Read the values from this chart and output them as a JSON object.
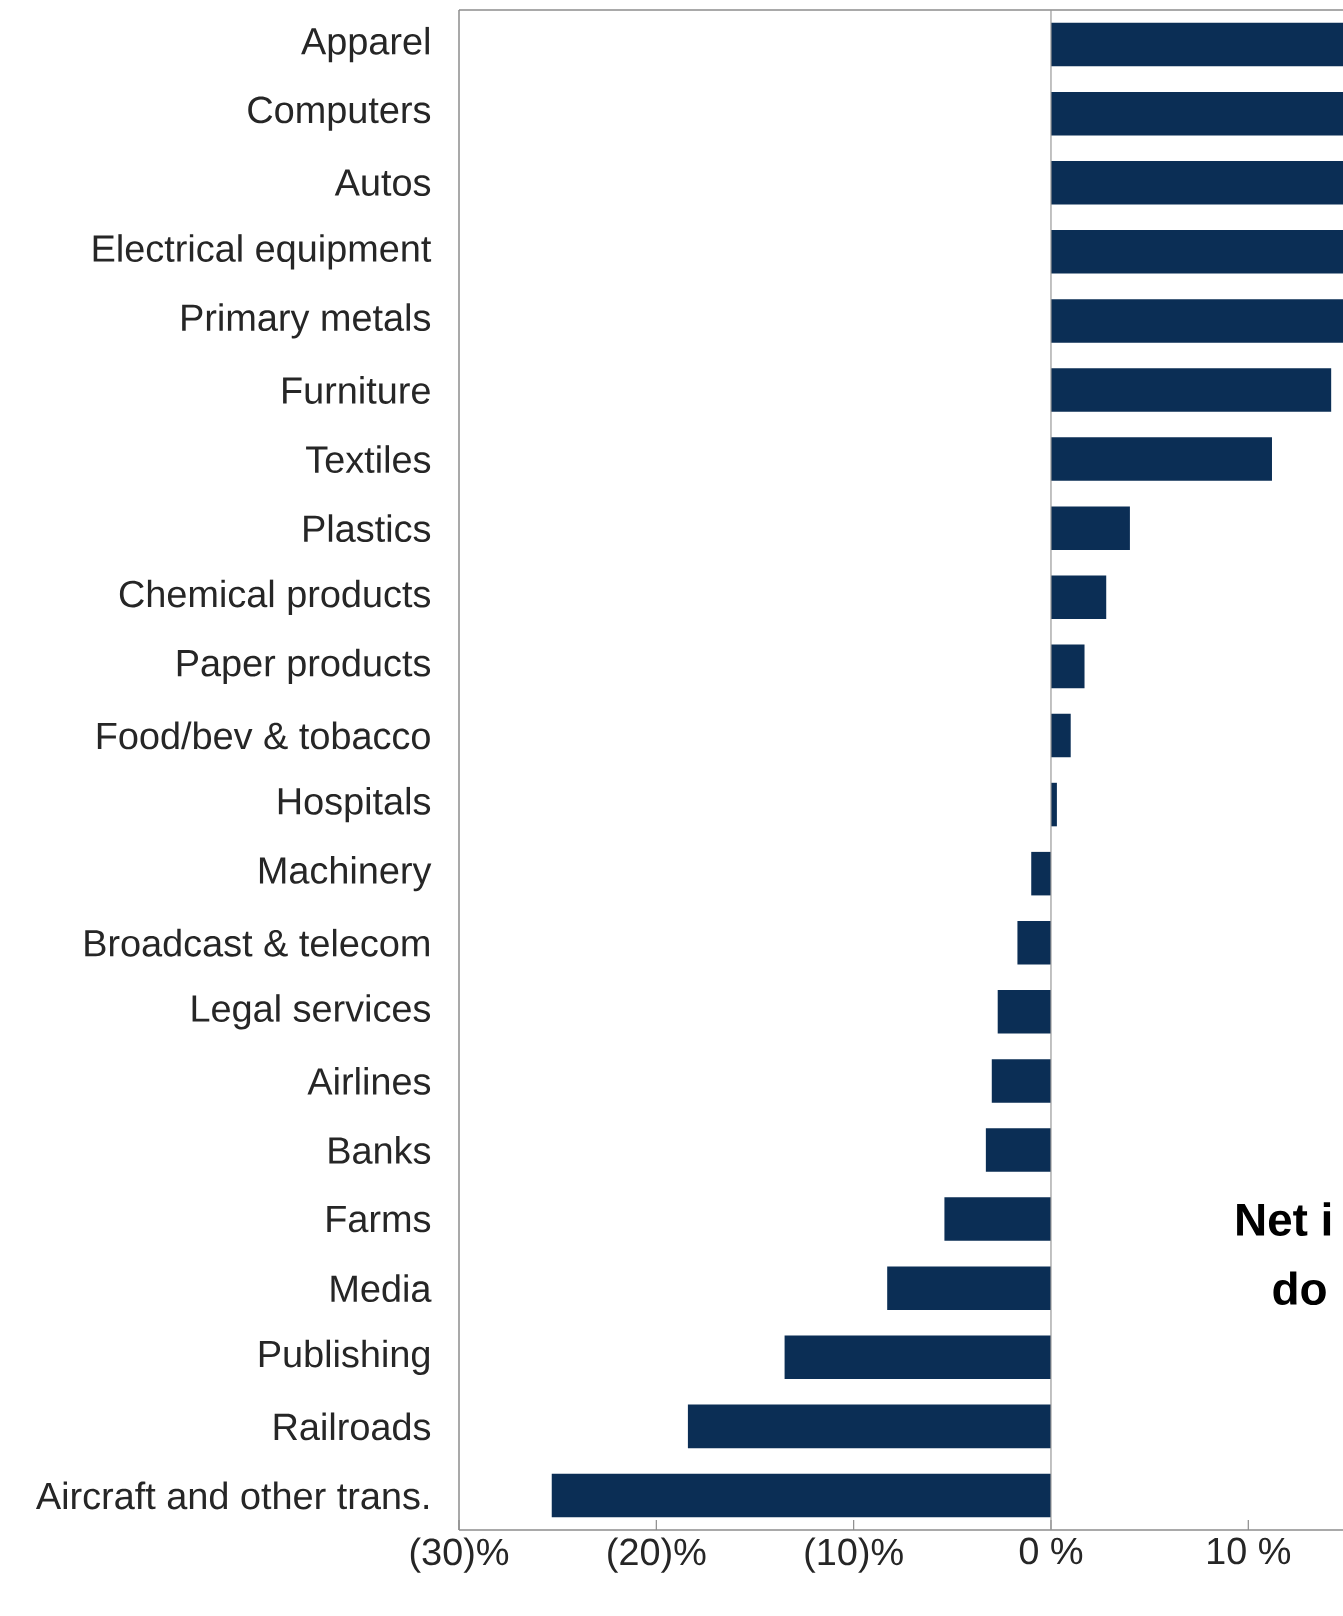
{
  "chart_data": {
    "type": "bar",
    "orientation": "horizontal",
    "color": "#0b2e55",
    "categories": [
      "Apparel",
      "Computers",
      "Autos",
      "Electrical equipment",
      "Primary metals",
      "Furniture",
      "Textiles",
      "Plastics",
      "Chemical products",
      "Paper products",
      "Food/bev & tobacco",
      "Hospitals",
      "Machinery",
      "Broadcast & telecom",
      "Legal services",
      "Airlines",
      "Banks",
      "Farms",
      "Media",
      "Publishing",
      "Railroads",
      "Aircraft and other trans."
    ],
    "values": [
      14.8,
      14.8,
      14.8,
      14.8,
      14.8,
      14.2,
      11.2,
      4.0,
      2.8,
      1.7,
      1.0,
      0.3,
      -1.0,
      -1.7,
      -2.7,
      -3.0,
      -3.3,
      -5.4,
      -8.3,
      -13.5,
      -18.4,
      -25.3
    ],
    "xlim": [
      -30,
      14.8
    ],
    "xticks": [
      {
        "value": -30,
        "label": "(30)%"
      },
      {
        "value": -20,
        "label": "(20)%"
      },
      {
        "value": -10,
        "label": "(10)%"
      },
      {
        "value": 0,
        "label": "0 %"
      },
      {
        "value": 10,
        "label": "10 %"
      }
    ],
    "annotations": [
      "Net i",
      "do"
    ]
  }
}
